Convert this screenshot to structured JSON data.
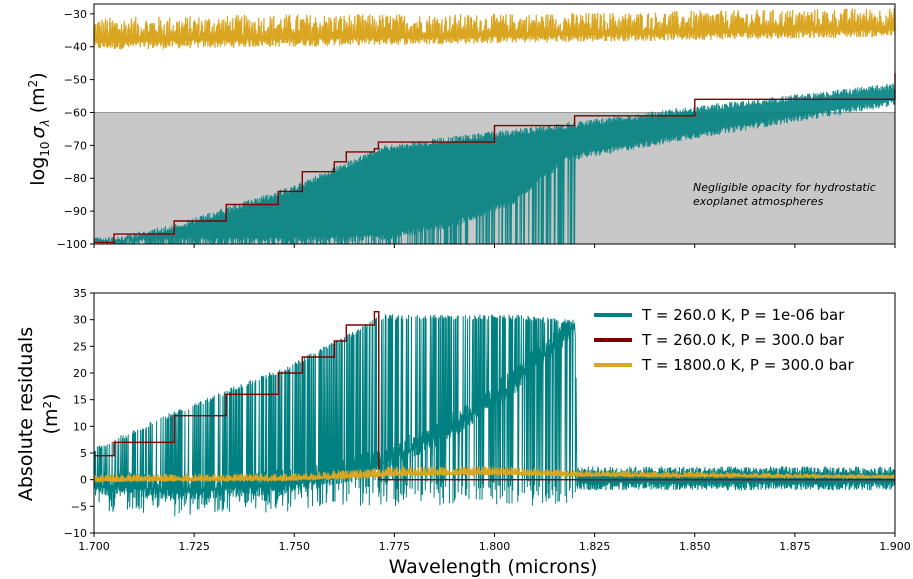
{
  "chart_data": [
    {
      "type": "line",
      "ylabel": "log₁₀ σ_λ (m²)",
      "ylabel_parts": {
        "base": "log",
        "sub": "10",
        "sym": "σ",
        "symsub": "λ",
        "unit": "(m",
        "sup": "2",
        "close": ")"
      },
      "xlim": [
        1.7,
        1.9
      ],
      "ylim": [
        -100,
        -27
      ],
      "yticks": [
        "−30",
        "−40",
        "−50",
        "−60",
        "−70",
        "−80",
        "−90",
        "−100"
      ],
      "ytick_values": [
        -30,
        -40,
        -50,
        -60,
        -70,
        -80,
        -90,
        -100
      ],
      "grid": false,
      "shaded_region": {
        "y_from": -100,
        "y_to": -60,
        "color": "#c8c8c8"
      },
      "annotation": [
        "Negligible opacity for hydrostatic",
        "exoplanet atmospheres"
      ],
      "series": [
        {
          "name": "T = 1800.0 K, P = 300.0 bar",
          "color": "#daa520",
          "kind": "noisy_band",
          "x": [
            1.7,
            1.75,
            1.8,
            1.85,
            1.9
          ],
          "y_low": [
            -41,
            -40,
            -39,
            -38,
            -37
          ],
          "y_high": [
            -31,
            -30,
            -30,
            -29,
            -28
          ]
        },
        {
          "name": "T = 260.0 K, P = 300.0 bar",
          "color": "#800000",
          "kind": "staircase",
          "x": [
            1.7,
            1.705,
            1.72,
            1.733,
            1.746,
            1.752,
            1.76,
            1.763,
            1.77,
            1.771,
            1.8,
            1.82,
            1.85,
            1.9
          ],
          "y": [
            -99.5,
            -97,
            -93,
            -88,
            -84,
            -78,
            -75,
            -72,
            -71,
            -69,
            -64,
            -61,
            -56,
            -48
          ]
        },
        {
          "name": "T = 260.0 K, P = 1e-06 bar",
          "color": "#008080",
          "kind": "spiky",
          "x": [
            1.7,
            1.72,
            1.75,
            1.772,
            1.79,
            1.805,
            1.818,
            1.85,
            1.9
          ],
          "y_top": [
            -99,
            -94,
            -82,
            -70,
            -67,
            -65,
            -63,
            -58,
            -51
          ],
          "y_floor": [
            -100,
            -100,
            -100,
            -99,
            -95,
            -88,
            -75,
            -68,
            -58
          ]
        }
      ]
    },
    {
      "type": "line",
      "xlabel": "Wavelength (microns)",
      "ylabel_lines": [
        "Absolute residuals",
        "(m²)"
      ],
      "xlim": [
        1.7,
        1.9
      ],
      "ylim": [
        -10,
        35
      ],
      "xticks": [
        "1.700",
        "1.725",
        "1.750",
        "1.775",
        "1.800",
        "1.825",
        "1.850",
        "1.875",
        "1.900"
      ],
      "xtick_values": [
        1.7,
        1.725,
        1.75,
        1.775,
        1.8,
        1.825,
        1.85,
        1.875,
        1.9
      ],
      "yticks": [
        "35",
        "30",
        "25",
        "20",
        "15",
        "10",
        "5",
        "0",
        "−5",
        "−10"
      ],
      "ytick_values": [
        35,
        30,
        25,
        20,
        15,
        10,
        5,
        0,
        -5,
        -10
      ],
      "grid": false,
      "legend": "top-right",
      "series": [
        {
          "name": "T = 260.0 K, P = 1e-06 bar",
          "color": "#008080",
          "kind": "spiky",
          "x": [
            1.7,
            1.72,
            1.75,
            1.772,
            1.79,
            1.805,
            1.82,
            1.821,
            1.86,
            1.9
          ],
          "y_top": [
            6,
            13,
            22,
            31,
            31,
            31,
            30,
            2.5,
            2,
            1.5
          ],
          "y_base": [
            -1,
            -2,
            -1,
            3,
            10,
            18,
            29,
            1.5,
            0,
            -0.5
          ]
        },
        {
          "name": "T = 260.0 K, P = 300.0 bar",
          "color": "#800000",
          "kind": "staircase",
          "x": [
            1.7,
            1.705,
            1.72,
            1.733,
            1.746,
            1.752,
            1.76,
            1.763,
            1.77,
            1.771,
            1.7711,
            1.9
          ],
          "y": [
            4.5,
            7,
            12,
            16,
            20,
            23,
            26,
            29,
            31.5,
            31.5,
            0,
            0
          ]
        },
        {
          "name": "T = 1800.0 K, P = 300.0 bar",
          "color": "#daa520",
          "kind": "band",
          "x": [
            1.7,
            1.75,
            1.775,
            1.8,
            1.82,
            1.9
          ],
          "y_low": [
            -0.5,
            -0.3,
            0.5,
            0.8,
            0.5,
            0.2
          ],
          "y_high": [
            1,
            1.2,
            2.5,
            2.5,
            1.8,
            1
          ]
        }
      ]
    }
  ],
  "legend_entries": [
    {
      "label": "T = 260.0 K, P = 1e-06 bar",
      "color": "#008080"
    },
    {
      "label": "T = 260.0 K, P = 300.0 bar",
      "color": "#800000"
    },
    {
      "label": "T = 1800.0 K, P = 300.0 bar",
      "color": "#daa520"
    }
  ]
}
